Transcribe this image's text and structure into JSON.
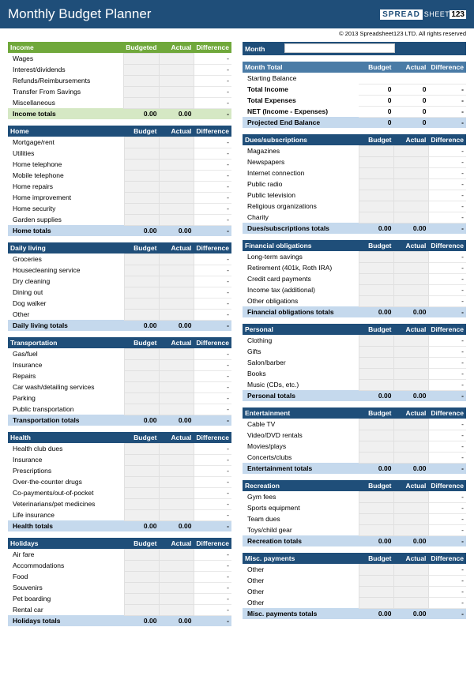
{
  "title": "Monthly Budget Planner",
  "copyright": "© 2013 Spreadsheet123 LTD. All rights reserved",
  "logo": {
    "prefix": "SPREAD",
    "suffix": "SHEET",
    "num": "123"
  },
  "colors": {
    "dark_blue": "#1f4e79",
    "mid_blue": "#4a7ba6",
    "light_blue": "#c5d9ed",
    "green": "#70a83b",
    "light_green": "#d5e8c4",
    "input_bg": "#f0f0f0"
  },
  "cols": {
    "budgeted": "Budgeted",
    "budget": "Budget",
    "actual": "Actual",
    "difference": "Difference"
  },
  "month_label": "Month",
  "month_total": {
    "header": "Month Total",
    "rows": [
      {
        "label": "Starting Balance",
        "b": "",
        "a": "",
        "d": ""
      },
      {
        "label": "Total Income",
        "b": "0",
        "a": "0",
        "d": "-",
        "bold": true
      },
      {
        "label": "Total Expenses",
        "b": "0",
        "a": "0",
        "d": "-",
        "bold": true
      },
      {
        "label": "NET (Income - Expenses)",
        "b": "0",
        "a": "0",
        "d": "-",
        "bold": true
      }
    ],
    "totals": {
      "label": "Projected End Balance",
      "b": "0",
      "a": "0",
      "d": "-"
    }
  },
  "income": {
    "header": "Income",
    "items": [
      "Wages",
      "Interest/dividends",
      "Refunds/Reimbursements",
      "Transfer From Savings",
      "Miscellaneous"
    ],
    "totals": {
      "label": "Income totals",
      "b": "0.00",
      "a": "0.00",
      "d": "-"
    }
  },
  "sections_left": [
    {
      "header": "Home",
      "items": [
        "Mortgage/rent",
        "Utilities",
        "Home telephone",
        "Mobile telephone",
        "Home repairs",
        "Home improvement",
        "Home security",
        "Garden supplies"
      ],
      "totals": {
        "label": "Home totals",
        "b": "0.00",
        "a": "0.00",
        "d": "-"
      }
    },
    {
      "header": "Daily living",
      "items": [
        "Groceries",
        "Housecleaning service",
        "Dry cleaning",
        "Dining out",
        "Dog walker",
        "Other"
      ],
      "totals": {
        "label": "Daily living totals",
        "b": "0.00",
        "a": "0.00",
        "d": "-"
      }
    },
    {
      "header": "Transportation",
      "items": [
        "Gas/fuel",
        "Insurance",
        "Repairs",
        "Car wash/detailing services",
        "Parking",
        "Public transportation"
      ],
      "totals": {
        "label": "Transportation totals",
        "b": "0.00",
        "a": "0.00",
        "d": "-"
      }
    },
    {
      "header": "Health",
      "items": [
        "Health club dues",
        "Insurance",
        "Prescriptions",
        "Over-the-counter drugs",
        "Co-payments/out-of-pocket",
        "Veterinarians/pet medicines",
        "Life insurance"
      ],
      "totals": {
        "label": "Health totals",
        "b": "0.00",
        "a": "0.00",
        "d": "-"
      }
    },
    {
      "header": "Holidays",
      "items": [
        "Air fare",
        "Accommodations",
        "Food",
        "Souvenirs",
        "Pet boarding",
        "Rental car"
      ],
      "totals": {
        "label": "Holidays totals",
        "b": "0.00",
        "a": "0.00",
        "d": "-"
      }
    }
  ],
  "sections_right": [
    {
      "header": "Dues/subscriptions",
      "items": [
        "Magazines",
        "Newspapers",
        "Internet connection",
        "Public radio",
        "Public television",
        "Religious organizations",
        "Charity"
      ],
      "totals": {
        "label": "Dues/subscriptions totals",
        "b": "0.00",
        "a": "0.00",
        "d": "-"
      }
    },
    {
      "header": "Financial obligations",
      "items": [
        "Long-term savings",
        "Retirement (401k, Roth IRA)",
        "Credit card payments",
        "Income tax (additional)",
        "Other obligations"
      ],
      "totals": {
        "label": "Financial obligations totals",
        "b": "0.00",
        "a": "0.00",
        "d": "-"
      }
    },
    {
      "header": "Personal",
      "items": [
        "Clothing",
        "Gifts",
        "Salon/barber",
        "Books",
        "Music (CDs, etc.)"
      ],
      "totals": {
        "label": "Personal totals",
        "b": "0.00",
        "a": "0.00",
        "d": "-"
      }
    },
    {
      "header": "Entertainment",
      "items": [
        "Cable TV",
        "Video/DVD rentals",
        "Movies/plays",
        "Concerts/clubs"
      ],
      "totals": {
        "label": "Entertainment totals",
        "b": "0.00",
        "a": "0.00",
        "d": "-"
      }
    },
    {
      "header": "Recreation",
      "items": [
        "Gym fees",
        "Sports equipment",
        "Team dues",
        "Toys/child gear"
      ],
      "totals": {
        "label": "Recreation totals",
        "b": "0.00",
        "a": "0.00",
        "d": "-"
      }
    },
    {
      "header": "Misc. payments",
      "items": [
        "Other",
        "Other",
        "Other",
        "Other"
      ],
      "totals": {
        "label": "Misc. payments totals",
        "b": "0.00",
        "a": "0.00",
        "d": "-"
      }
    }
  ]
}
